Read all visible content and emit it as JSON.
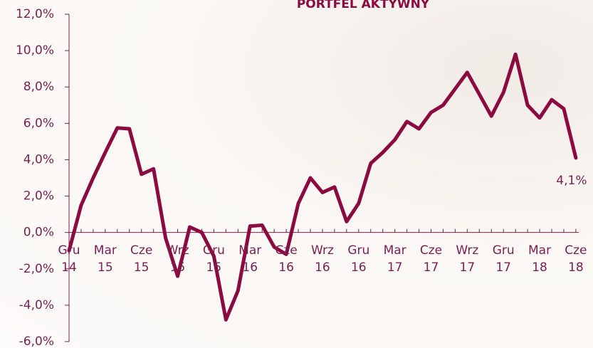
{
  "chart_data": {
    "type": "line",
    "title": "PORTFEL AKTYWNY",
    "categories": [
      "Gru 14",
      null,
      null,
      "Mar 15",
      null,
      null,
      "Cze 15",
      null,
      null,
      "Wrz 15",
      null,
      null,
      "Gru 15",
      null,
      null,
      "Mar 16",
      null,
      null,
      "Cze 16",
      null,
      null,
      "Wrz 16",
      null,
      null,
      "Gru 16",
      null,
      null,
      "Mar 17",
      null,
      null,
      "Cze 17",
      null,
      null,
      "Wrz 17",
      null,
      null,
      "Gru 17",
      null,
      null,
      "Mar 18",
      null,
      null,
      "Cze 18"
    ],
    "series": [
      {
        "name": null,
        "color": "#8b0a3f",
        "values": [
          -1.0,
          1.5,
          3.0,
          4.4,
          5.75,
          5.7,
          3.2,
          3.5,
          -0.3,
          -2.4,
          0.3,
          0.0,
          -1.3,
          -4.8,
          -3.2,
          0.35,
          0.4,
          -0.8,
          -1.2,
          1.6,
          3.0,
          2.2,
          2.5,
          0.6,
          1.6,
          3.8,
          4.4,
          5.1,
          6.1,
          5.7,
          6.6,
          7.0,
          7.9,
          8.8,
          7.6,
          6.4,
          7.7,
          9.8,
          7.0,
          6.3,
          7.3,
          6.8,
          4.1
        ],
        "value_labels": [
          null,
          null,
          null,
          null,
          null,
          null,
          null,
          null,
          null,
          null,
          null,
          null,
          null,
          null,
          null,
          null,
          null,
          null,
          null,
          null,
          null,
          null,
          null,
          null,
          null,
          null,
          null,
          null,
          null,
          null,
          null,
          null,
          null,
          null,
          null,
          null,
          null,
          null,
          null,
          null,
          null,
          null,
          "4,1%"
        ]
      }
    ],
    "ylim": [
      -6,
      12
    ],
    "yticks": [
      {
        "value": -6,
        "label": "-6,0%"
      },
      {
        "value": -4,
        "label": "-4,0%"
      },
      {
        "value": -2,
        "label": "-2,0%"
      },
      {
        "value": 0,
        "label": "0,0%"
      },
      {
        "value": 2,
        "label": "2,0%"
      },
      {
        "value": 4,
        "label": "4,0%"
      },
      {
        "value": 6,
        "label": "6,0%"
      },
      {
        "value": 8,
        "label": "8,0%"
      },
      {
        "value": 10,
        "label": "10,0%"
      },
      {
        "value": 12,
        "label": "12,0%"
      }
    ]
  }
}
